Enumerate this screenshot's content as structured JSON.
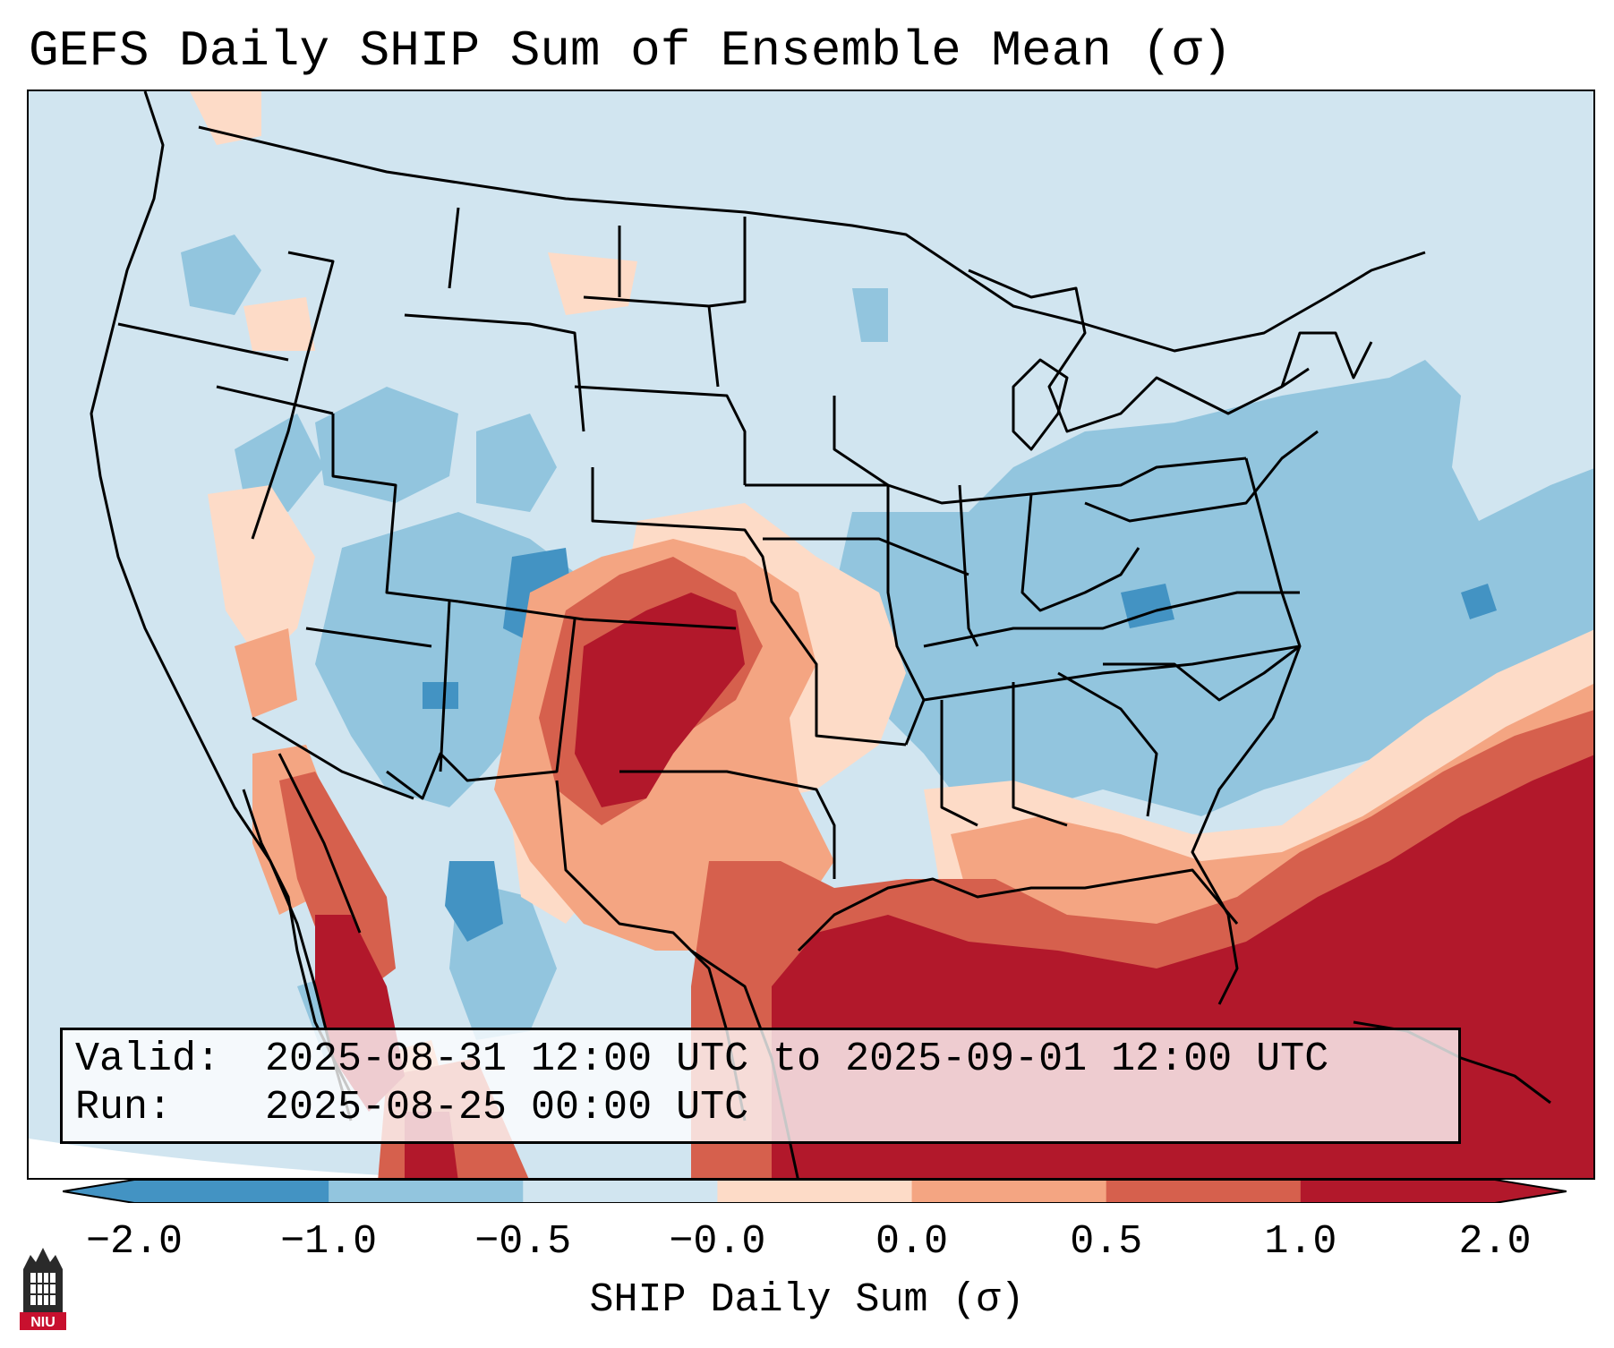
{
  "title": "GEFS Daily SHIP Sum of Ensemble Mean (σ)",
  "info": {
    "valid_label": "Valid:",
    "valid_value": "2025-08-31 12:00 UTC to 2025-09-01 12:00 UTC",
    "run_label": "Run:",
    "run_value": "2025-08-25 00:00 UTC"
  },
  "colorbar": {
    "label": "SHIP Daily Sum (σ)",
    "ticks": [
      "−2.0",
      "−1.0",
      "−0.5",
      "−0.0",
      "0.0",
      "0.5",
      "1.0",
      "2.0"
    ],
    "colors": [
      "#4393c3",
      "#92c5de",
      "#d1e5f0",
      "#ffffff",
      "#fddbc7",
      "#f4a582",
      "#d6604d",
      "#b2182b"
    ],
    "under_color": "#2166ac",
    "over_color": "#67001f"
  },
  "logo": {
    "text": "NIU"
  }
}
